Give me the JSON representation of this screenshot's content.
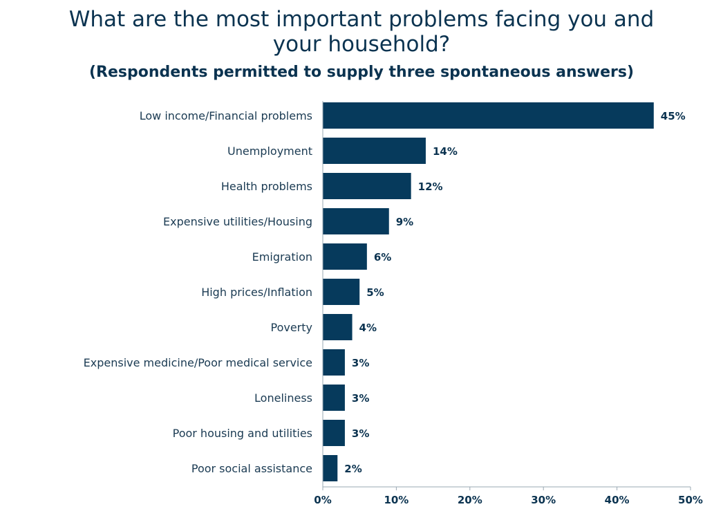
{
  "chart_data": {
    "type": "bar",
    "orientation": "horizontal",
    "title": "What are the most important problems facing you and your household?",
    "subtitle": "(Respondents permitted to supply three spontaneous answers)",
    "categories": [
      "Low income/Financial problems",
      "Unemployment",
      "Health problems",
      "Expensive utilities/Housing",
      "Emigration",
      "High prices/Inflation",
      "Poverty",
      "Expensive medicine/Poor medical service",
      "Loneliness",
      "Poor housing and utilities",
      "Poor social assistance"
    ],
    "values": [
      45,
      14,
      12,
      9,
      6,
      5,
      4,
      3,
      3,
      3,
      2
    ],
    "value_labels": [
      "45%",
      "14%",
      "12%",
      "9%",
      "6%",
      "5%",
      "4%",
      "3%",
      "3%",
      "3%",
      "2%"
    ],
    "xlim": [
      0,
      50
    ],
    "xticks": [
      0,
      10,
      20,
      30,
      40,
      50
    ],
    "xtick_labels": [
      "0%",
      "10%",
      "20%",
      "30%",
      "40%",
      "50%"
    ],
    "xlabel": "",
    "ylabel": "",
    "grid": false,
    "legend": "none",
    "bar_color": "#063a5c"
  }
}
